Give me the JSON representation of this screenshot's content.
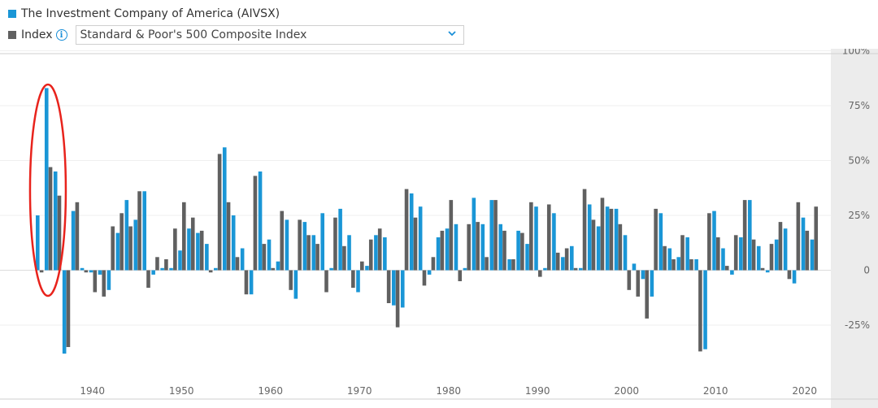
{
  "legend": {
    "fund_label": "The Investment Company of America (AIVSX)",
    "fund_color": "#1a96d6",
    "index_label": "Index",
    "index_color": "#606060",
    "info_icon": "info-circle-icon",
    "index_select_value": "Standard & Poor's 500 Composite Index",
    "dropdown_icon": "chevron-down-icon"
  },
  "chart_data": {
    "type": "bar",
    "x_ticks": [
      "1940",
      "1950",
      "1960",
      "1970",
      "1980",
      "1990",
      "2000",
      "2010",
      "2020"
    ],
    "y_ticks": [
      "100%",
      "75%",
      "50%",
      "25%",
      "0",
      "-25%"
    ],
    "ylim": [
      -50,
      100
    ],
    "annotation": "red ellipse highlighting 1934–1936",
    "series": [
      {
        "name": "The Investment Company of America (AIVSX)",
        "color": "#1a96d6",
        "x": [
          1934,
          1935,
          1936,
          1937,
          1938,
          1939,
          1940,
          1941,
          1942,
          1943,
          1944,
          1945,
          1946,
          1947,
          1948,
          1949,
          1950,
          1951,
          1952,
          1953,
          1954,
          1955,
          1956,
          1957,
          1958,
          1959,
          1960,
          1961,
          1962,
          1963,
          1964,
          1965,
          1966,
          1967,
          1968,
          1969,
          1970,
          1971,
          1972,
          1973,
          1974,
          1975,
          1976,
          1977,
          1978,
          1979,
          1980,
          1981,
          1982,
          1983,
          1984,
          1985,
          1986,
          1987,
          1988,
          1989,
          1990,
          1991,
          1992,
          1993,
          1994,
          1995,
          1996,
          1997,
          1998,
          1999,
          2000,
          2001,
          2002,
          2003,
          2004,
          2005,
          2006,
          2007,
          2008,
          2009,
          2010,
          2011,
          2012,
          2013,
          2014,
          2015,
          2016,
          2017,
          2018,
          2019,
          2020,
          2021
        ],
        "values": [
          25,
          83,
          45,
          -38,
          27,
          1,
          -1,
          -2,
          -9,
          17,
          32,
          23,
          36,
          -2,
          1,
          1,
          9,
          19,
          17,
          12,
          1,
          56,
          25,
          10,
          -11,
          45,
          14,
          4,
          23,
          -13,
          22,
          16,
          26,
          1,
          28,
          16,
          -10,
          2,
          16,
          15,
          -16,
          -17,
          35,
          29,
          -2,
          15,
          19,
          21,
          1,
          33,
          21,
          32,
          21,
          5,
          18,
          12,
          29,
          1,
          26,
          6,
          11,
          1,
          30,
          20,
          29,
          28,
          16,
          3,
          -4,
          -12,
          26,
          10,
          6,
          15,
          5,
          -36,
          27,
          10,
          -2,
          15,
          32,
          11,
          -1,
          14,
          19,
          -6,
          24,
          14
        ]
      },
      {
        "name": "Standard & Poor's 500 Composite Index",
        "color": "#606060",
        "x": [
          1934,
          1935,
          1936,
          1937,
          1938,
          1939,
          1940,
          1941,
          1942,
          1943,
          1944,
          1945,
          1946,
          1947,
          1948,
          1949,
          1950,
          1951,
          1952,
          1953,
          1954,
          1955,
          1956,
          1957,
          1958,
          1959,
          1960,
          1961,
          1962,
          1963,
          1964,
          1965,
          1966,
          1967,
          1968,
          1969,
          1970,
          1971,
          1972,
          1973,
          1974,
          1975,
          1976,
          1977,
          1978,
          1979,
          1980,
          1981,
          1982,
          1983,
          1984,
          1985,
          1986,
          1987,
          1988,
          1989,
          1990,
          1991,
          1992,
          1993,
          1994,
          1995,
          1996,
          1997,
          1998,
          1999,
          2000,
          2001,
          2002,
          2003,
          2004,
          2005,
          2006,
          2007,
          2008,
          2009,
          2010,
          2011,
          2012,
          2013,
          2014,
          2015,
          2016,
          2017,
          2018,
          2019,
          2020,
          2021
        ],
        "values": [
          -1,
          47,
          34,
          -35,
          31,
          -1,
          -10,
          -12,
          20,
          26,
          20,
          36,
          -8,
          6,
          5,
          19,
          31,
          24,
          18,
          -1,
          53,
          31,
          6,
          -11,
          43,
          12,
          1,
          27,
          -9,
          23,
          16,
          12,
          -10,
          24,
          11,
          -8,
          4,
          14,
          19,
          -15,
          -26,
          37,
          24,
          -7,
          6,
          18,
          32,
          -5,
          21,
          22,
          6,
          32,
          18,
          5,
          17,
          31,
          -3,
          30,
          8,
          10,
          1,
          37,
          23,
          33,
          28,
          21,
          -9,
          -12,
          -22,
          28,
          11,
          5,
          16,
          5,
          -37,
          26,
          15,
          2,
          16,
          32,
          14,
          1,
          12,
          22,
          -4,
          31,
          18,
          29
        ]
      }
    ]
  }
}
